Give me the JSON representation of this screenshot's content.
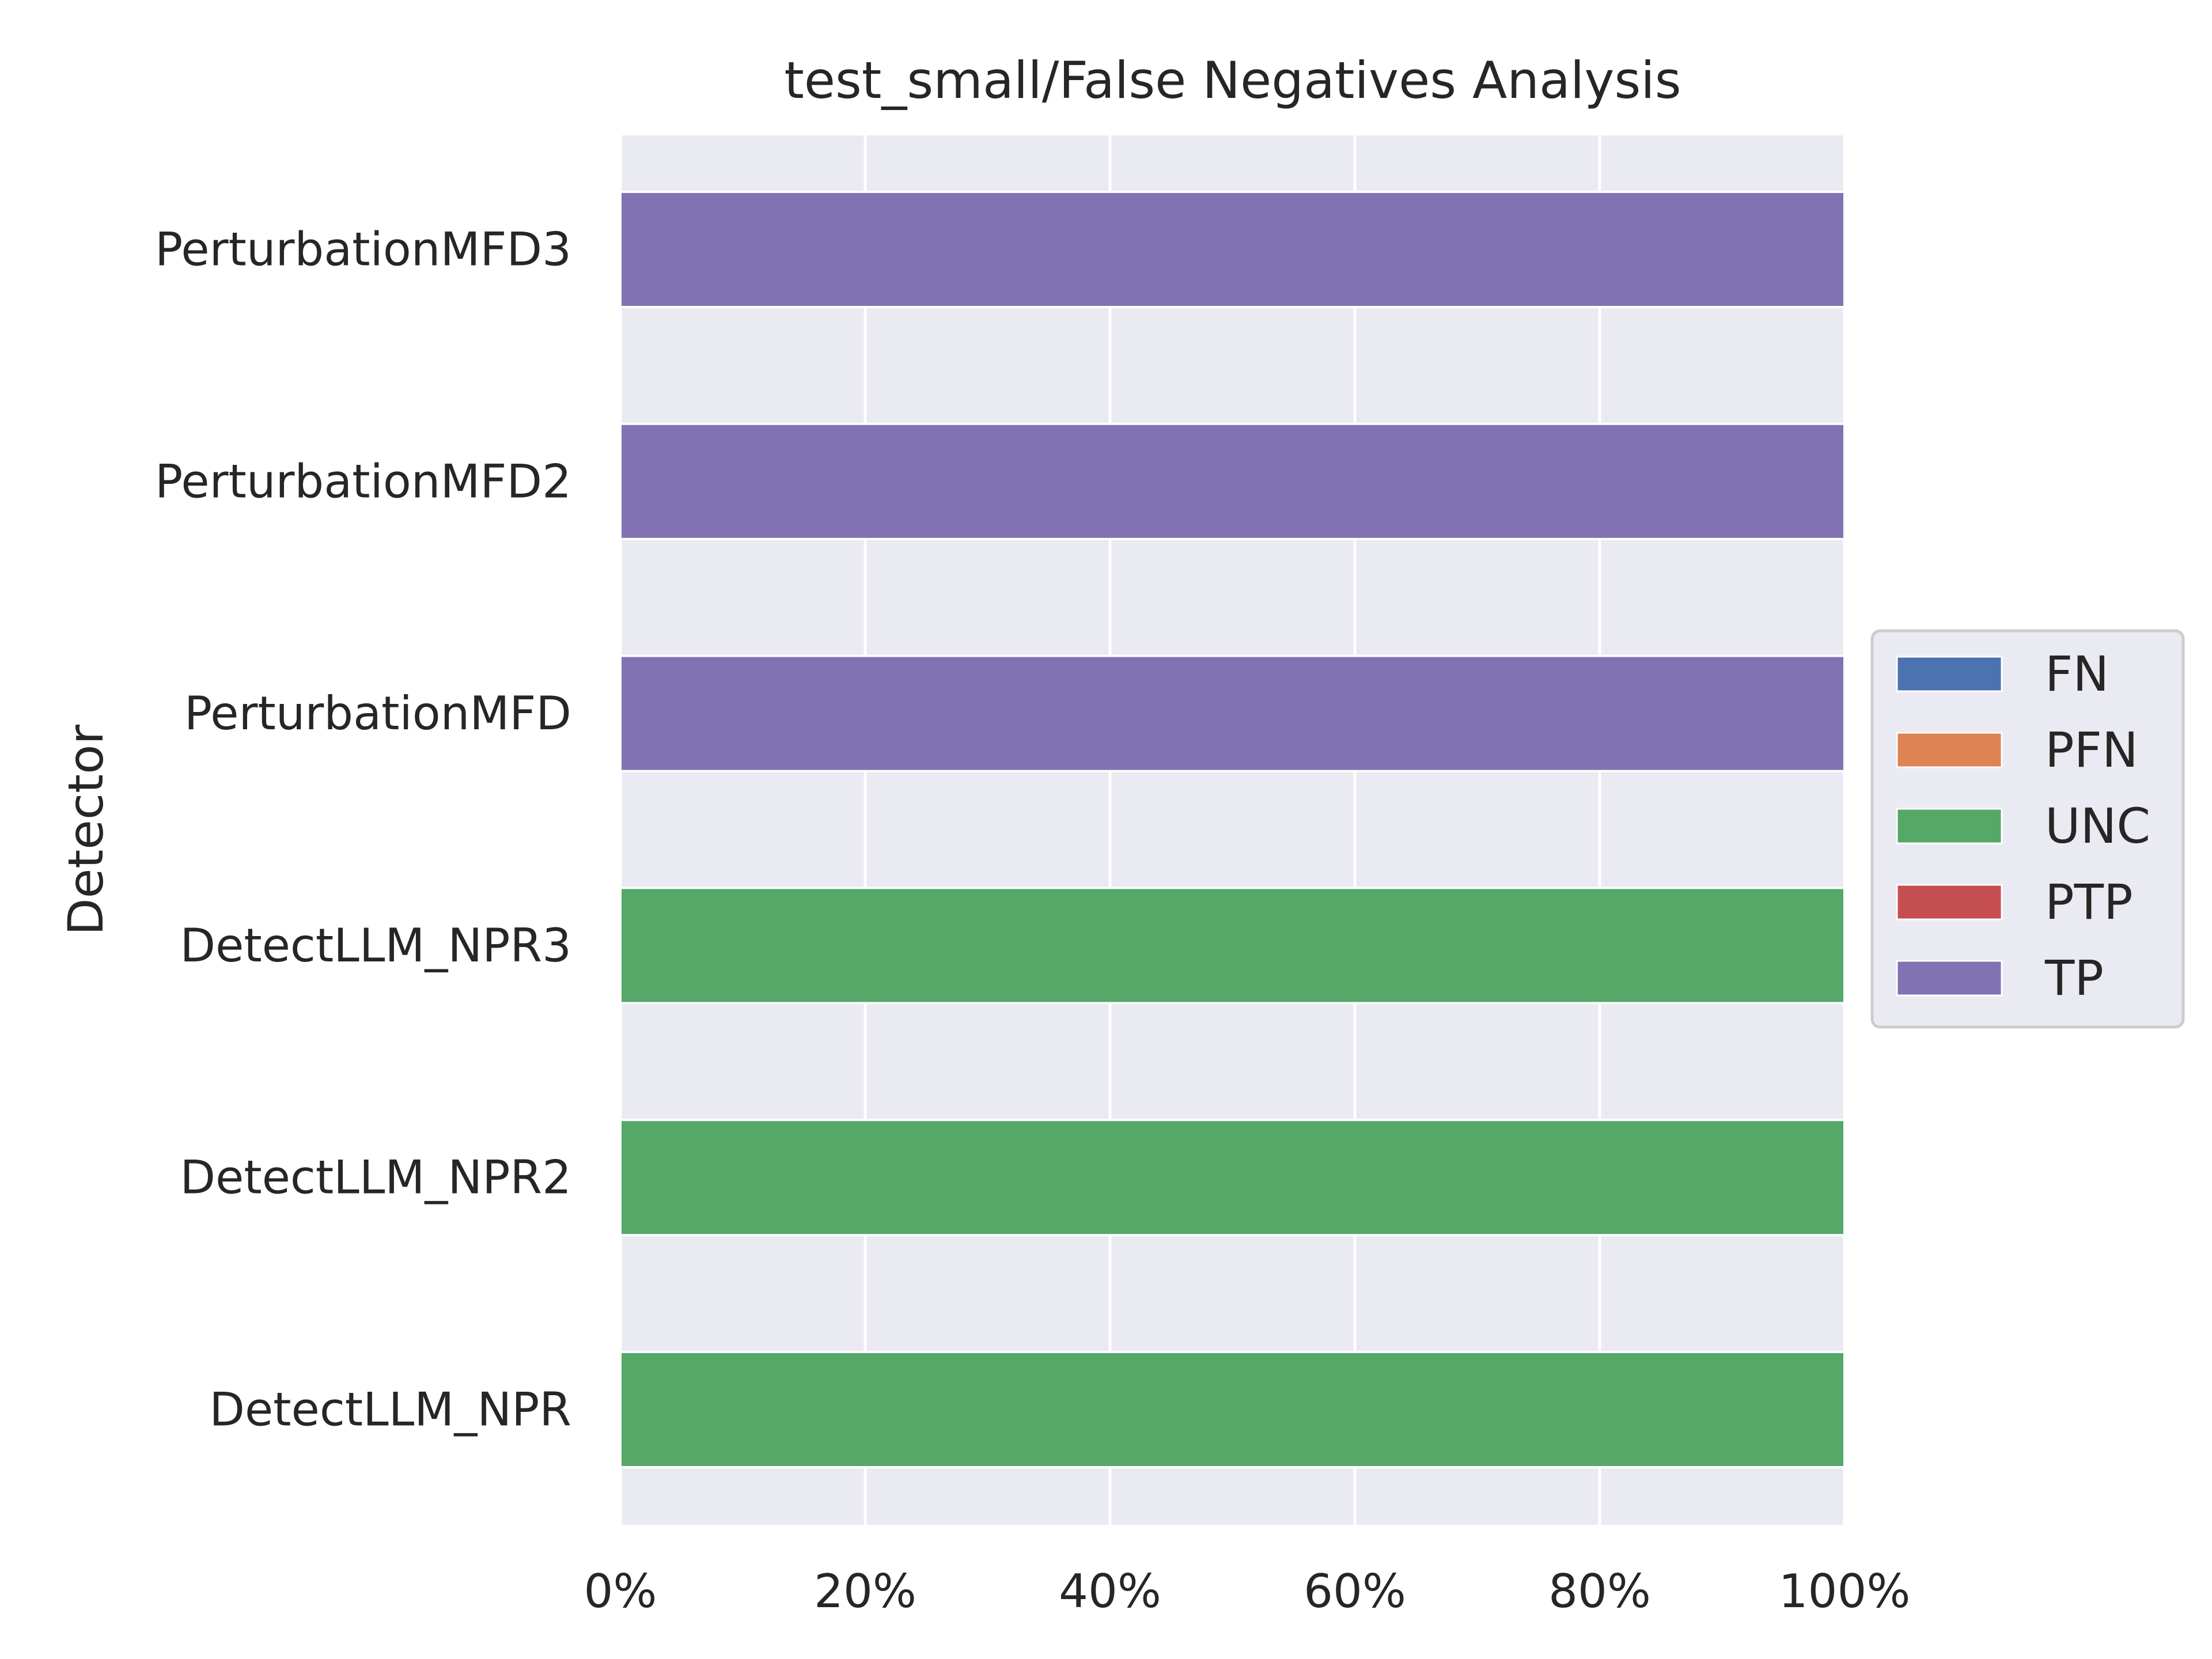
{
  "chart_data": {
    "type": "bar",
    "orientation": "horizontal",
    "stacked": true,
    "title": "test_small/False Negatives Analysis",
    "xlabel": "",
    "ylabel": "Detector",
    "categories": [
      "DetectLLM_NPR",
      "DetectLLM_NPR2",
      "DetectLLM_NPR3",
      "PerturbationMFD",
      "PerturbationMFD2",
      "PerturbationMFD3"
    ],
    "x_ticks": [
      "0%",
      "20%",
      "40%",
      "60%",
      "80%",
      "100%"
    ],
    "xlim": [
      0,
      100
    ],
    "grid": true,
    "legend_position": "center-right outside",
    "series": [
      {
        "name": "FN",
        "color": "#4c72b0",
        "values": [
          0,
          0,
          0,
          0,
          0,
          0
        ]
      },
      {
        "name": "PFN",
        "color": "#dd8452",
        "values": [
          0,
          0,
          0,
          0,
          0,
          0
        ]
      },
      {
        "name": "UNC",
        "color": "#55a868",
        "values": [
          100,
          100,
          100,
          0,
          0,
          0
        ]
      },
      {
        "name": "PTP",
        "color": "#c44e52",
        "values": [
          0,
          0,
          0,
          0,
          0,
          0
        ]
      },
      {
        "name": "TP",
        "color": "#8172b3",
        "values": [
          0,
          0,
          0,
          100,
          100,
          100
        ]
      }
    ]
  },
  "colors": {
    "plot_background": "#eaeaf2",
    "grid": "#ffffff",
    "text": "#262626"
  }
}
